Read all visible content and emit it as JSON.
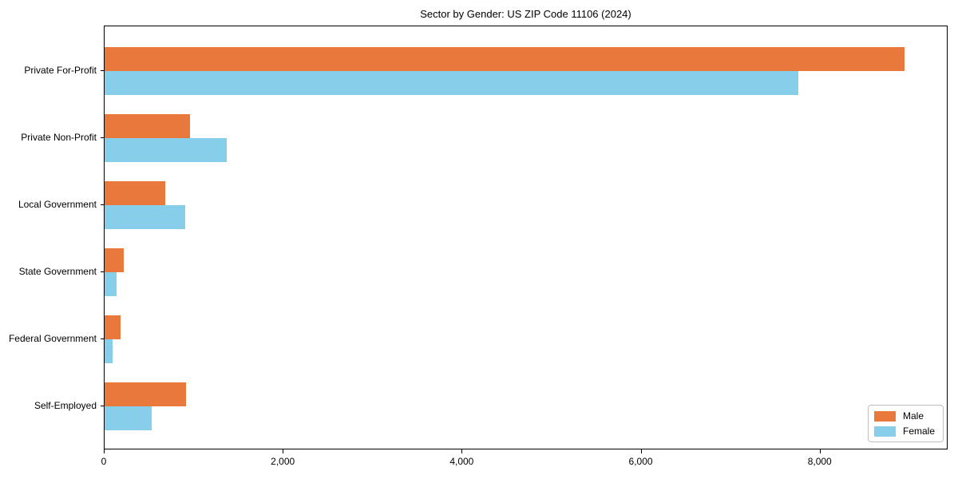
{
  "title": "Sector by Gender: US ZIP Code 11106 (2024)",
  "colors": {
    "male": "#E8783C",
    "female": "#87CEEB",
    "axis": "#000000",
    "legend_border": "#BFBFBF",
    "background": "#FFFFFF"
  },
  "legend": {
    "male_label": "Male",
    "female_label": "Female"
  },
  "chart_data": {
    "type": "bar",
    "orientation": "horizontal",
    "title": "Sector by Gender: US ZIP Code 11106 (2024)",
    "categories": [
      "Private For-Profit",
      "Private Non-Profit",
      "Local Government",
      "State Government",
      "Federal Government",
      "Self-Employed"
    ],
    "series": [
      {
        "name": "Male",
        "color": "#E8783C",
        "values": [
          8960,
          960,
          680,
          215,
          180,
          910
        ]
      },
      {
        "name": "Female",
        "color": "#87CEEB",
        "values": [
          7770,
          1370,
          900,
          135,
          90,
          525
        ]
      }
    ],
    "xlabel": "",
    "ylabel": "",
    "xlim": [
      0,
      9430
    ],
    "xticks": [
      0,
      2000,
      4000,
      6000,
      8000
    ],
    "xtick_labels": [
      "0",
      "2,000",
      "4,000",
      "6,000",
      "8,000"
    ],
    "grid": false,
    "legend_position": "lower right"
  }
}
